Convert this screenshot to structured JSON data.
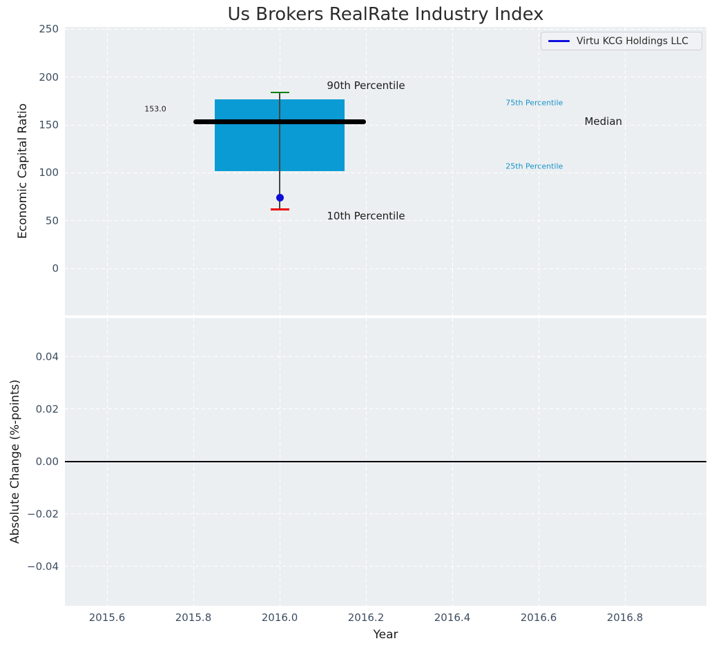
{
  "title": "Us Brokers RealRate Industry Index",
  "legend": {
    "label": "Virtu KCG Holdings LLC"
  },
  "colors": {
    "plot_bg": "#eceff1",
    "grid": "#ffffff",
    "tick_label": "#3d4d60",
    "title_text": "#2b2b2b",
    "box_fill": "#0a9bd4",
    "median_line": "#000000",
    "p90_cap": "#008000",
    "p10_cap": "#ee0000",
    "whisker": "#444444",
    "company_dot": "#0d0dd6",
    "legend_line": "#0f0fe0",
    "percentile_label": "#1793c9",
    "zero_line": "#000000"
  },
  "chart_data": [
    {
      "type": "box",
      "title": "Us Brokers RealRate Industry Index",
      "ylabel": "Economic Capital Ratio",
      "xlim": [
        2015.5024,
        2016.9888
      ],
      "ylim": [
        -48.8,
        252.4
      ],
      "yticks": [
        0,
        50,
        100,
        150,
        200,
        250
      ],
      "ytick_labels": [
        "0",
        "50",
        "100",
        "150",
        "200",
        "250"
      ],
      "grid": true,
      "x": 2016.0,
      "box": {
        "p90": 184,
        "p75": 177,
        "median": 153.0,
        "p25": 102,
        "p10": 62,
        "box_halfwidth": 0.15,
        "median_halfwidth": 0.2
      },
      "median_value_label": "153.0",
      "series": [
        {
          "name": "Virtu KCG Holdings LLC",
          "points": [
            {
              "x": 2016.0,
              "y": 74
            }
          ]
        }
      ],
      "legend_position": "upper right",
      "annotations": [
        {
          "text": "90th Percentile",
          "x": 2016.2,
          "y": 191.5,
          "size": 15,
          "color": "#1a1a1a"
        },
        {
          "text": "75th Percentile",
          "x": 2016.59,
          "y": 173,
          "size": 11,
          "color": "#1793c9"
        },
        {
          "text": "Median",
          "x": 2016.75,
          "y": 154,
          "size": 15,
          "color": "#1a1a1a"
        },
        {
          "text": "153.0",
          "x": 2015.712,
          "y": 166.5,
          "size": 11,
          "color": "#1a1a1a"
        },
        {
          "text": "25th Percentile",
          "x": 2016.59,
          "y": 107,
          "size": 11,
          "color": "#1793c9"
        },
        {
          "text": "10th Percentile",
          "x": 2016.2,
          "y": 55,
          "size": 15,
          "color": "#1a1a1a"
        }
      ]
    },
    {
      "type": "line",
      "ylabel": "Absolute Change (%-points)",
      "xlabel": "Year",
      "xlim": [
        2015.5024,
        2016.9888
      ],
      "ylim": [
        -0.055,
        0.0547
      ],
      "yticks": [
        0.04,
        0.02,
        0.0,
        -0.02,
        -0.04
      ],
      "ytick_labels": [
        "0.04",
        "0.02",
        "0.00",
        "−0.02",
        "−0.04"
      ],
      "xticks": [
        2015.6,
        2015.8,
        2016.0,
        2016.2,
        2016.4,
        2016.6,
        2016.8
      ],
      "xtick_labels": [
        "2015.6",
        "2015.8",
        "2016.0",
        "2016.2",
        "2016.4",
        "2016.6",
        "2016.8"
      ],
      "grid": true,
      "zero_line": 0.0,
      "series": []
    }
  ]
}
